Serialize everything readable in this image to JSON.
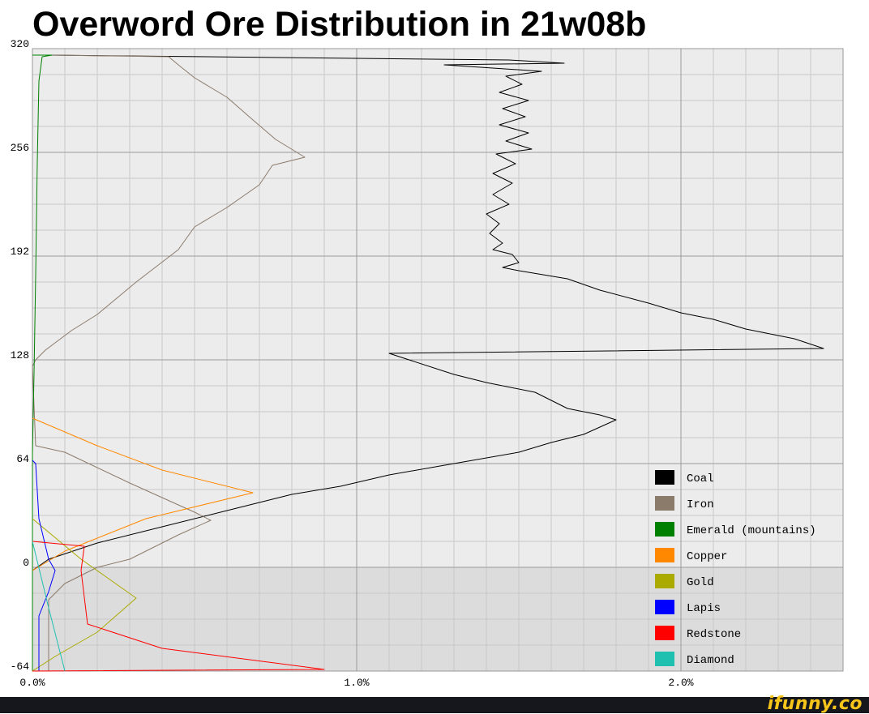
{
  "chart_data": {
    "type": "line",
    "title": "Overword Ore Distribution in 21w08b",
    "xlabel": "",
    "ylabel": "",
    "x_unit": "%",
    "xlim": [
      0,
      2.5
    ],
    "ylim": [
      -64,
      320
    ],
    "grid": true,
    "legend_position": "bottom-right",
    "x_ticks": [
      {
        "value": 0,
        "label": "0.0%"
      },
      {
        "value": 1,
        "label": "1.0%"
      },
      {
        "value": 2,
        "label": "2.0%"
      }
    ],
    "y_ticks": [
      {
        "value": 320,
        "label": "320"
      },
      {
        "value": 256,
        "label": "256"
      },
      {
        "value": 192,
        "label": "192"
      },
      {
        "value": 128,
        "label": "128"
      },
      {
        "value": 64,
        "label": "64"
      },
      {
        "value": 0,
        "label": "0"
      },
      {
        "value": -64,
        "label": "-64"
      }
    ],
    "series": [
      {
        "name": "Coal",
        "color": "#000000",
        "points": [
          [
            0.0,
            -2
          ],
          [
            0.05,
            5
          ],
          [
            0.2,
            15
          ],
          [
            0.4,
            25
          ],
          [
            0.6,
            35
          ],
          [
            0.8,
            45
          ],
          [
            0.95,
            50
          ],
          [
            1.1,
            57
          ],
          [
            1.3,
            64
          ],
          [
            1.5,
            71
          ],
          [
            1.6,
            77
          ],
          [
            1.7,
            82
          ],
          [
            1.8,
            91
          ],
          [
            1.75,
            94
          ],
          [
            1.65,
            98
          ],
          [
            1.55,
            108
          ],
          [
            1.4,
            114
          ],
          [
            1.3,
            119
          ],
          [
            1.1,
            132
          ],
          [
            2.44,
            135
          ],
          [
            2.35,
            141
          ],
          [
            2.2,
            147
          ],
          [
            2.1,
            153
          ],
          [
            2.0,
            157
          ],
          [
            1.9,
            163
          ],
          [
            1.75,
            171
          ],
          [
            1.65,
            178
          ],
          [
            1.5,
            183
          ],
          [
            1.45,
            185
          ],
          [
            1.5,
            188
          ],
          [
            1.48,
            193
          ],
          [
            1.42,
            196
          ],
          [
            1.45,
            200
          ],
          [
            1.41,
            206
          ],
          [
            1.44,
            212
          ],
          [
            1.4,
            218
          ],
          [
            1.47,
            224
          ],
          [
            1.42,
            230
          ],
          [
            1.48,
            237
          ],
          [
            1.42,
            243
          ],
          [
            1.49,
            249
          ],
          [
            1.43,
            255
          ],
          [
            1.54,
            258
          ],
          [
            1.46,
            263
          ],
          [
            1.53,
            268
          ],
          [
            1.44,
            273
          ],
          [
            1.52,
            278
          ],
          [
            1.45,
            283
          ],
          [
            1.53,
            288
          ],
          [
            1.44,
            293
          ],
          [
            1.51,
            298
          ],
          [
            1.46,
            303
          ],
          [
            1.57,
            306
          ],
          [
            1.27,
            310
          ],
          [
            1.64,
            311
          ],
          [
            1.47,
            313
          ],
          [
            0.05,
            316
          ],
          [
            0.0,
            316
          ]
        ]
      },
      {
        "name": "Iron",
        "color": "#8b7b6b",
        "points": [
          [
            0.05,
            -64
          ],
          [
            0.05,
            -20
          ],
          [
            0.1,
            -10
          ],
          [
            0.2,
            0
          ],
          [
            0.3,
            5
          ],
          [
            0.45,
            20
          ],
          [
            0.55,
            29
          ],
          [
            0.5,
            34
          ],
          [
            0.3,
            52
          ],
          [
            0.1,
            71
          ],
          [
            0.01,
            75
          ],
          [
            0.0,
            124
          ],
          [
            0.01,
            128
          ],
          [
            0.04,
            134
          ],
          [
            0.12,
            146
          ],
          [
            0.2,
            156
          ],
          [
            0.32,
            176
          ],
          [
            0.45,
            196
          ],
          [
            0.5,
            210
          ],
          [
            0.6,
            222
          ],
          [
            0.7,
            236
          ],
          [
            0.74,
            248
          ],
          [
            0.84,
            253
          ],
          [
            0.75,
            264
          ],
          [
            0.68,
            276
          ],
          [
            0.6,
            290
          ],
          [
            0.5,
            302
          ],
          [
            0.45,
            310
          ],
          [
            0.42,
            315
          ],
          [
            0.05,
            316
          ],
          [
            0.0,
            316
          ]
        ]
      },
      {
        "name": "Emerald (mountains)",
        "color": "#008000",
        "points": [
          [
            0.0,
            -64
          ],
          [
            0.0,
            70
          ],
          [
            0.005,
            120
          ],
          [
            0.01,
            180
          ],
          [
            0.015,
            250
          ],
          [
            0.02,
            300
          ],
          [
            0.03,
            315
          ],
          [
            0.06,
            316
          ],
          [
            0.0,
            316
          ]
        ]
      },
      {
        "name": "Copper",
        "color": "#ff8800",
        "points": [
          [
            0.0,
            -2
          ],
          [
            0.1,
            10
          ],
          [
            0.35,
            30
          ],
          [
            0.68,
            46
          ],
          [
            0.4,
            60
          ],
          [
            0.2,
            75
          ],
          [
            0.0,
            92
          ]
        ]
      },
      {
        "name": "Gold",
        "color": "#aaaa00",
        "points": [
          [
            0.0,
            -64
          ],
          [
            0.07,
            -55
          ],
          [
            0.2,
            -40
          ],
          [
            0.32,
            -19
          ],
          [
            0.15,
            5
          ],
          [
            0.0,
            30
          ]
        ]
      },
      {
        "name": "Lapis",
        "color": "#0000ff",
        "points": [
          [
            0.02,
            -64
          ],
          [
            0.02,
            -30
          ],
          [
            0.05,
            -15
          ],
          [
            0.07,
            -2
          ],
          [
            0.05,
            5
          ],
          [
            0.02,
            30
          ],
          [
            0.01,
            64
          ],
          [
            0.0,
            66
          ]
        ]
      },
      {
        "name": "Redstone",
        "color": "#ff0000",
        "points": [
          [
            0.0,
            -64
          ],
          [
            0.9,
            -63
          ],
          [
            0.4,
            -50
          ],
          [
            0.17,
            -35
          ],
          [
            0.15,
            -2
          ],
          [
            0.16,
            13
          ],
          [
            0.0,
            16
          ]
        ]
      },
      {
        "name": "Diamond",
        "color": "#20c0b0",
        "points": [
          [
            0.0,
            16
          ],
          [
            0.05,
            -25
          ],
          [
            0.1,
            -64
          ]
        ]
      }
    ]
  },
  "footer": {
    "watermark": "ifunny.co"
  }
}
